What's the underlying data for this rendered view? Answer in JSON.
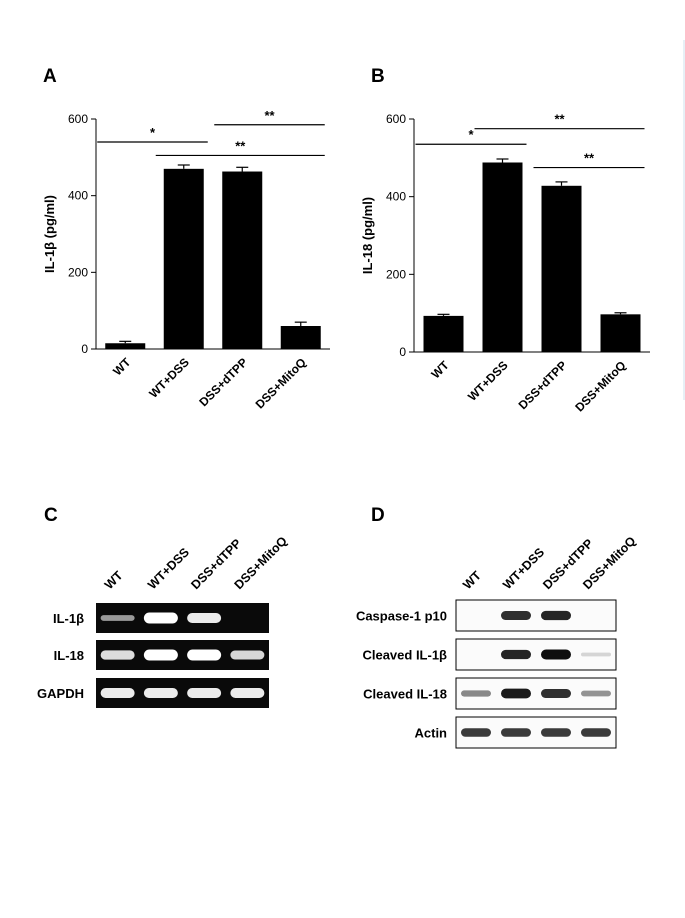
{
  "panels": {
    "a": "A",
    "b": "B",
    "c": "C",
    "d": "D"
  },
  "chart_data": [
    {
      "type": "bar",
      "panel": "A",
      "ylabel": "IL-1β (pg/ml)",
      "xlabel": "",
      "categories": [
        "WT",
        "WT+DSS",
        "DSS+dTPP",
        "DSS+MitoQ"
      ],
      "values": [
        15,
        470,
        463,
        60
      ],
      "errors": [
        5,
        10,
        11,
        10
      ],
      "ylim": [
        0,
        600
      ],
      "yticks": [
        0,
        200,
        400,
        600
      ],
      "grid": false,
      "significance": [
        {
          "from": 0,
          "to": 1,
          "label": "*",
          "level": 540
        },
        {
          "from": 1,
          "to": 3,
          "label": "**",
          "level": 505
        },
        {
          "from": 2,
          "to": 3,
          "label": "**",
          "level": 585
        }
      ]
    },
    {
      "type": "bar",
      "panel": "B",
      "ylabel": "IL-18 (pg/ml)",
      "xlabel": "",
      "categories": [
        "WT",
        "WT+DSS",
        "DSS+dTPP",
        "DSS+MitoQ"
      ],
      "values": [
        93,
        488,
        428,
        97
      ],
      "errors": [
        4,
        9,
        10,
        4
      ],
      "ylim": [
        0,
        600
      ],
      "yticks": [
        0,
        200,
        400,
        600
      ],
      "grid": false,
      "significance": [
        {
          "from": 0,
          "to": 1,
          "label": "*",
          "level": 535
        },
        {
          "from": 1,
          "to": 3,
          "label": "**",
          "level": 575
        },
        {
          "from": 2,
          "to": 3,
          "label": "**",
          "level": 475
        }
      ]
    }
  ],
  "gel_c": {
    "lanes": [
      "WT",
      "WT+DSS",
      "DSS+dTPP",
      "DSS+MitoQ"
    ],
    "rows": [
      {
        "label": "IL-1β",
        "intensity": [
          0.25,
          1.0,
          0.85,
          0.0
        ]
      },
      {
        "label": "IL-18",
        "intensity": [
          0.75,
          1.0,
          1.0,
          0.7
        ]
      },
      {
        "label": "GAPDH",
        "intensity": [
          0.85,
          0.85,
          0.85,
          0.85
        ]
      }
    ]
  },
  "blot_d": {
    "lanes": [
      "WT",
      "WT+DSS",
      "DSS+dTPP",
      "DSS+MitoQ"
    ],
    "rows": [
      {
        "label": "Caspase-1 p10",
        "intensity": [
          0.0,
          0.85,
          0.9,
          0.0
        ]
      },
      {
        "label": "Cleaved IL-1β",
        "intensity": [
          0.0,
          0.9,
          1.0,
          0.1
        ]
      },
      {
        "label": "Cleaved IL-18",
        "intensity": [
          0.45,
          0.95,
          0.85,
          0.4
        ]
      },
      {
        "label": "Actin",
        "intensity": [
          0.8,
          0.8,
          0.8,
          0.8
        ]
      }
    ]
  }
}
